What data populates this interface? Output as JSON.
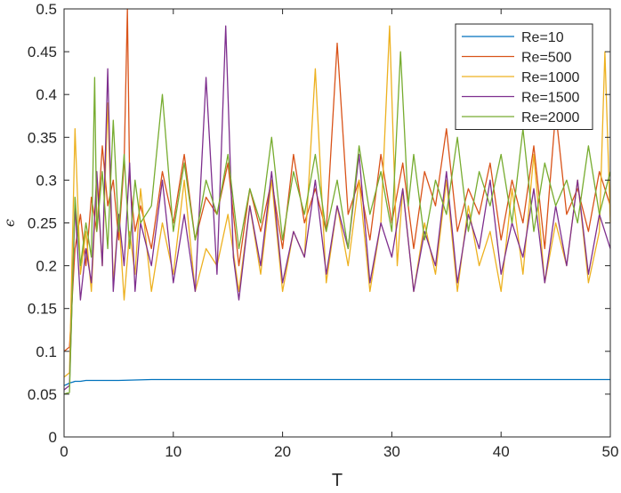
{
  "chart_data": {
    "type": "line",
    "title": "",
    "xlabel": "T",
    "ylabel": "ϵ",
    "xlim": [
      0,
      50
    ],
    "ylim": [
      0,
      0.5
    ],
    "xticks": [
      0,
      10,
      20,
      30,
      40,
      50
    ],
    "xtick_labels": [
      "0",
      "10",
      "20",
      "30",
      "40",
      "50"
    ],
    "yticks": [
      0,
      0.05,
      0.1,
      0.15,
      0.2,
      0.25,
      0.3,
      0.35,
      0.4,
      0.45,
      0.5
    ],
    "ytick_labels": [
      "0",
      "0.05",
      "0.1",
      "0.15",
      "0.2",
      "0.25",
      "0.3",
      "0.35",
      "0.4",
      "0.45",
      "0.5"
    ],
    "grid": false,
    "legend_position": "top-right",
    "series": [
      {
        "name": "Re=10",
        "color": "#0072BD",
        "x": [
          0,
          0.2,
          0.5,
          0.8,
          1.0,
          1.5,
          2,
          3,
          5,
          8,
          12,
          16,
          20,
          25,
          30,
          35,
          40,
          45,
          50
        ],
        "y": [
          0.06,
          0.061,
          0.063,
          0.064,
          0.065,
          0.065,
          0.066,
          0.066,
          0.066,
          0.067,
          0.067,
          0.067,
          0.067,
          0.067,
          0.067,
          0.067,
          0.067,
          0.067,
          0.067
        ]
      },
      {
        "name": "Re=500",
        "color": "#D95319",
        "x": [
          0,
          0.5,
          1,
          1.5,
          2,
          2.5,
          3,
          3.5,
          4,
          4.5,
          5,
          5.5,
          5.8,
          6,
          6.5,
          7,
          8,
          9,
          10,
          11,
          12,
          13,
          14,
          15,
          16,
          17,
          18,
          19,
          20,
          21,
          22,
          23,
          24,
          25,
          26,
          27,
          28,
          29,
          30,
          31,
          32,
          33,
          34,
          35,
          36,
          37,
          38,
          39,
          40,
          41,
          42,
          43,
          44,
          45,
          46,
          47,
          48,
          49,
          50
        ],
        "y": [
          0.1,
          0.105,
          0.22,
          0.26,
          0.2,
          0.28,
          0.24,
          0.34,
          0.27,
          0.3,
          0.23,
          0.32,
          0.5,
          0.3,
          0.24,
          0.27,
          0.22,
          0.31,
          0.25,
          0.33,
          0.23,
          0.28,
          0.26,
          0.32,
          0.2,
          0.29,
          0.24,
          0.3,
          0.22,
          0.33,
          0.25,
          0.29,
          0.24,
          0.46,
          0.26,
          0.3,
          0.23,
          0.33,
          0.25,
          0.32,
          0.22,
          0.31,
          0.27,
          0.36,
          0.24,
          0.29,
          0.26,
          0.32,
          0.23,
          0.3,
          0.25,
          0.34,
          0.22,
          0.38,
          0.26,
          0.29,
          0.24,
          0.31,
          0.27
        ]
      },
      {
        "name": "Re=1000",
        "color": "#EDB120",
        "x": [
          0,
          0.5,
          1,
          1.5,
          2,
          2.5,
          3,
          3.5,
          4,
          4.5,
          5,
          5.5,
          6,
          6.5,
          7,
          8,
          9,
          10,
          11,
          12,
          13,
          14,
          15,
          16,
          17,
          18,
          19,
          20,
          21,
          22,
          23,
          24,
          25,
          26,
          27,
          28,
          29,
          29.8,
          30.5,
          31,
          32,
          33,
          34,
          35,
          36,
          37,
          38,
          39,
          40,
          41,
          42,
          43,
          44,
          45,
          46,
          47,
          48,
          49,
          49.5,
          50
        ],
        "y": [
          0.07,
          0.075,
          0.36,
          0.19,
          0.24,
          0.17,
          0.3,
          0.2,
          0.39,
          0.18,
          0.26,
          0.16,
          0.24,
          0.19,
          0.29,
          0.17,
          0.25,
          0.19,
          0.3,
          0.17,
          0.22,
          0.2,
          0.26,
          0.17,
          0.27,
          0.19,
          0.3,
          0.17,
          0.24,
          0.21,
          0.43,
          0.18,
          0.27,
          0.2,
          0.3,
          0.17,
          0.25,
          0.48,
          0.2,
          0.29,
          0.17,
          0.25,
          0.19,
          0.3,
          0.17,
          0.27,
          0.2,
          0.24,
          0.17,
          0.29,
          0.19,
          0.33,
          0.18,
          0.25,
          0.2,
          0.3,
          0.18,
          0.24,
          0.45,
          0.25
        ]
      },
      {
        "name": "Re=1500",
        "color": "#7E2F8E",
        "x": [
          0,
          0.5,
          1,
          1.5,
          2,
          2.5,
          3,
          3.5,
          4,
          4.5,
          5,
          5.5,
          6,
          6.5,
          7,
          8,
          9,
          10,
          11,
          12,
          13,
          14,
          14.8,
          15.5,
          16,
          17,
          18,
          19,
          20,
          21,
          22,
          23,
          24,
          25,
          26,
          27,
          28,
          29,
          30,
          31,
          32,
          33,
          34,
          35,
          36,
          37,
          38,
          39,
          40,
          41,
          42,
          43,
          44,
          45,
          46,
          47,
          48,
          49,
          50
        ],
        "y": [
          0.055,
          0.06,
          0.27,
          0.16,
          0.22,
          0.18,
          0.31,
          0.2,
          0.43,
          0.17,
          0.26,
          0.2,
          0.32,
          0.17,
          0.25,
          0.2,
          0.3,
          0.18,
          0.26,
          0.17,
          0.42,
          0.19,
          0.48,
          0.21,
          0.16,
          0.27,
          0.2,
          0.31,
          0.18,
          0.24,
          0.21,
          0.3,
          0.19,
          0.27,
          0.22,
          0.33,
          0.18,
          0.25,
          0.21,
          0.29,
          0.17,
          0.24,
          0.2,
          0.31,
          0.18,
          0.26,
          0.22,
          0.3,
          0.19,
          0.25,
          0.21,
          0.29,
          0.18,
          0.27,
          0.2,
          0.3,
          0.19,
          0.26,
          0.22
        ]
      },
      {
        "name": "Re=2000",
        "color": "#77AC30",
        "x": [
          0,
          0.5,
          1,
          1.5,
          2,
          2.5,
          2.8,
          3,
          3.5,
          4,
          4.5,
          5,
          5.5,
          6,
          6.5,
          7,
          8,
          9,
          10,
          11,
          12,
          13,
          14,
          15,
          16,
          17,
          18,
          19,
          20,
          21,
          22,
          23,
          24,
          25,
          26,
          27,
          28,
          29,
          30,
          30.8,
          31.5,
          32,
          33,
          34,
          35,
          36,
          37,
          38,
          39,
          40,
          41,
          42,
          43,
          44,
          45,
          46,
          47,
          48,
          49,
          50
        ],
        "y": [
          0.05,
          0.052,
          0.28,
          0.2,
          0.25,
          0.21,
          0.42,
          0.24,
          0.31,
          0.22,
          0.37,
          0.24,
          0.33,
          0.22,
          0.3,
          0.25,
          0.27,
          0.4,
          0.24,
          0.32,
          0.23,
          0.3,
          0.26,
          0.33,
          0.22,
          0.29,
          0.25,
          0.35,
          0.23,
          0.31,
          0.26,
          0.33,
          0.24,
          0.3,
          0.22,
          0.34,
          0.26,
          0.31,
          0.24,
          0.45,
          0.27,
          0.33,
          0.23,
          0.3,
          0.26,
          0.35,
          0.24,
          0.31,
          0.27,
          0.33,
          0.25,
          0.36,
          0.24,
          0.32,
          0.27,
          0.3,
          0.25,
          0.34,
          0.26,
          0.31
        ]
      }
    ]
  }
}
